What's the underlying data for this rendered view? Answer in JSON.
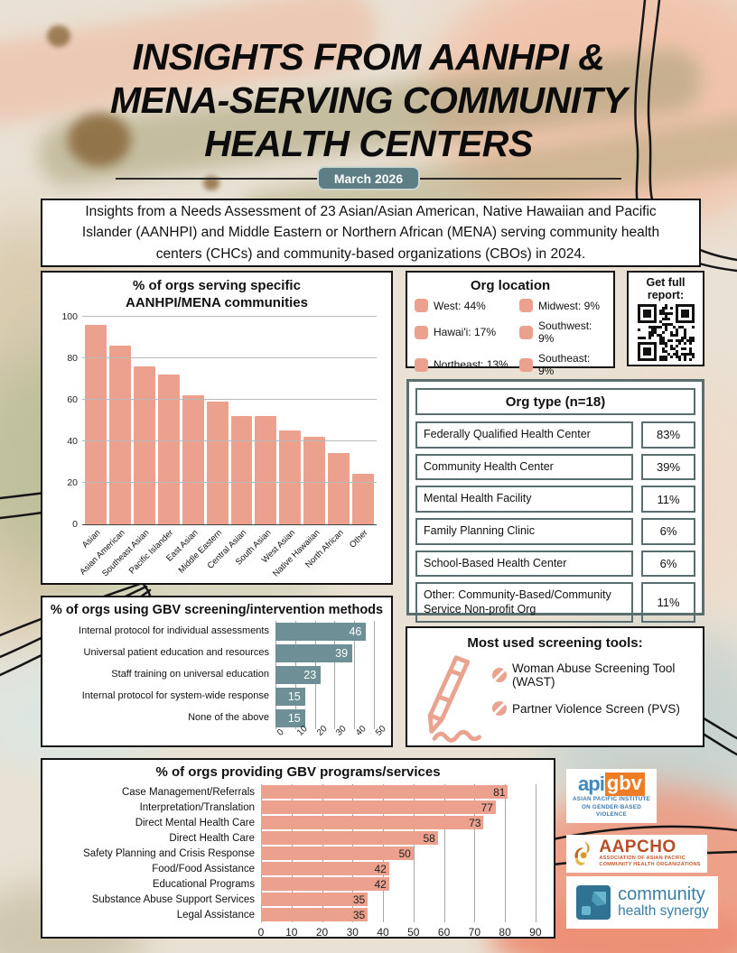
{
  "header": {
    "title_lines": [
      "INSIGHTS FROM AANHPI &",
      "MENA-SERVING COMMUNITY",
      "HEALTH CENTERS"
    ],
    "date_badge": "March 2026"
  },
  "intro": {
    "text": "Insights from a Needs Assessment of 23 Asian/Asian American, Native Hawaiian and Pacific Islander (AANHPI) and Middle Eastern or Northern African (MENA) serving community health centers (CHCs) and community-based organizations (CBOs) in 2024."
  },
  "org_location": {
    "title": "Org location",
    "items": [
      {
        "label": "West: 44%"
      },
      {
        "label": "Hawai'i: 17%"
      },
      {
        "label": "Northeast: 13%"
      },
      {
        "label": "Midwest: 9%"
      },
      {
        "label": "Southwest: 9%"
      },
      {
        "label": "Southeast: 9%"
      }
    ]
  },
  "report": {
    "label": "Get full report:"
  },
  "org_type": {
    "title": "Org type (n=18)",
    "rows": [
      {
        "label": "Federally Qualified Health Center",
        "value": "83%"
      },
      {
        "label": "Community Health Center",
        "value": "39%"
      },
      {
        "label": "Mental Health Facility",
        "value": "11%"
      },
      {
        "label": "Family Planning Clinic",
        "value": "6%"
      },
      {
        "label": "School-Based Health Center",
        "value": "6%"
      },
      {
        "label": "Other: Community-Based/Community Service Non-profit Org",
        "value": "11%"
      }
    ]
  },
  "screening_tools": {
    "title": "Most used screening tools:",
    "items": [
      "Woman Abuse Screening Tool (WAST)",
      "Partner Violence Screen (PVS)"
    ]
  },
  "logos": {
    "apigbv": {
      "part1": "api",
      "part2": "gbv",
      "line1": "ASIAN PACIFIC INSTITUTE",
      "line2": "ON GENDER-BASED VIOLENCE"
    },
    "aapcho": {
      "name": "AAPCHO",
      "line1": "ASSOCIATION OF ASIAN PACIFIC",
      "line2": "COMMUNITY HEALTH ORGANIZATIONS"
    },
    "chs": {
      "line1": "community",
      "line2": "health synergy"
    }
  },
  "colors": {
    "salmon": "#eba18d",
    "teal_bar": "#6f8f96",
    "slate_border": "#5a6e70",
    "badge": "#5d7e84"
  },
  "chart_data": [
    {
      "type": "bar",
      "orientation": "vertical",
      "title": "% of orgs serving specific AANHPI/MENA communities",
      "title_lines": [
        "% of orgs serving specific",
        "AANHPI/MENA communities"
      ],
      "categories": [
        "Asian",
        "Asian American",
        "Southeast Asian",
        "Pacific Islander",
        "East Asian",
        "Middle Eastern",
        "Central Asian",
        "South Asian",
        "West Asian",
        "Native Hawaiian",
        "North African",
        "Other"
      ],
      "values": [
        96,
        86,
        76,
        72,
        62,
        59,
        52,
        52,
        45,
        42,
        34,
        24
      ],
      "ylim": [
        0,
        100
      ],
      "yticks": [
        0,
        20,
        40,
        60,
        80,
        100
      ],
      "grid": true,
      "bar_color": "#eba18d"
    },
    {
      "type": "bar",
      "orientation": "horizontal",
      "title": "% of orgs using GBV screening/intervention methods",
      "categories": [
        "Internal protocol for individual assessments",
        "Universal patient education and resources",
        "Staff training on universal education",
        "Internal protocol for system-wide response",
        "None of the above"
      ],
      "values": [
        46,
        39,
        23,
        15,
        15
      ],
      "xlim": [
        0,
        55
      ],
      "xticks": [
        0,
        10,
        20,
        30,
        40,
        50
      ],
      "grid": true,
      "bar_color": "#6f8f96",
      "value_label_color": "#ffffff"
    },
    {
      "type": "bar",
      "orientation": "horizontal",
      "title": "% of orgs providing GBV programs/services",
      "categories": [
        "Case Management/Referrals",
        "Interpretation/Translation",
        "Direct Mental Health Care",
        "Direct Health Care",
        "Safety Planning and Crisis Response",
        "Food/Food Assistance",
        "Educational Programs",
        "Substance Abuse Support Services",
        "Legal Assistance"
      ],
      "values": [
        81,
        77,
        73,
        58,
        50,
        42,
        42,
        35,
        35
      ],
      "xlim": [
        0,
        93
      ],
      "xticks": [
        0,
        10,
        20,
        30,
        40,
        50,
        60,
        70,
        80,
        90
      ],
      "grid": true,
      "bar_color": "#eba18d",
      "value_label_color": "#222222"
    }
  ]
}
